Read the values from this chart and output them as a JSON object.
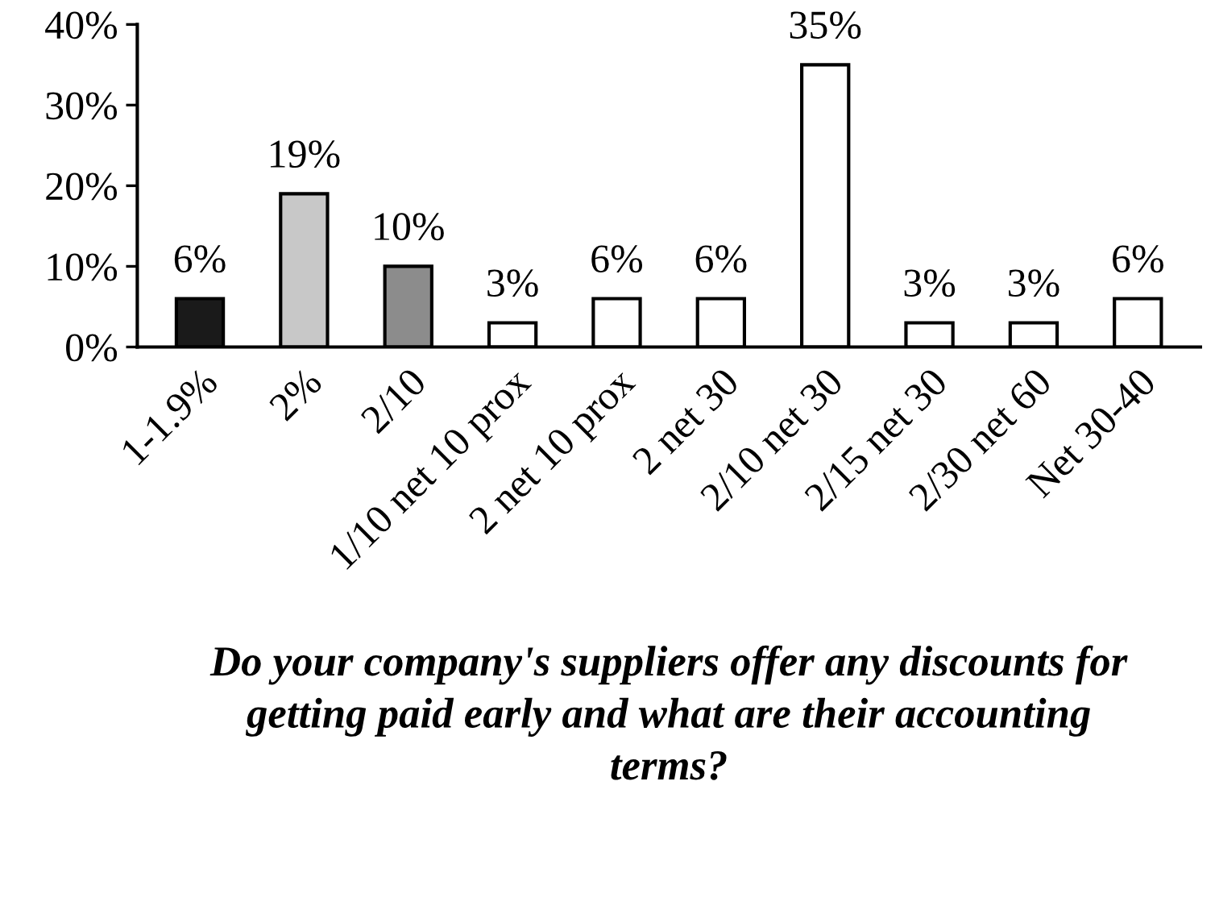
{
  "chart_data": {
    "type": "bar",
    "xlabel": "Do your company's suppliers offer any discounts for getting paid early and what are their accounting terms?",
    "categories": [
      "1-1.9%",
      "2%",
      "2/10",
      "1/10 net 10 prox",
      "2 net 10 prox",
      "2 net 30",
      "2/10 net 30",
      "2/15 net 30",
      "2/30 net 60",
      "Net 30-40"
    ],
    "values": [
      6,
      19,
      10,
      3,
      6,
      6,
      35,
      3,
      3,
      6
    ],
    "value_labels": [
      "6%",
      "19%",
      "10%",
      "3%",
      "6%",
      "6%",
      "35%",
      "3%",
      "3%",
      "6%"
    ],
    "colors": [
      "#1a1a1a",
      "#c8c8c8",
      "#8c8c8c",
      "#ffffff",
      "#ffffff",
      "#ffffff",
      "#ffffff",
      "#ffffff",
      "#ffffff",
      "#ffffff"
    ],
    "ylim": [
      0,
      40
    ],
    "yticks": [
      {
        "value": 0,
        "label": "0%"
      },
      {
        "value": 10,
        "label": "10%"
      },
      {
        "value": 20,
        "label": "20%"
      },
      {
        "value": 30,
        "label": "30%"
      },
      {
        "value": 40,
        "label": "40%"
      }
    ],
    "grid": false
  }
}
